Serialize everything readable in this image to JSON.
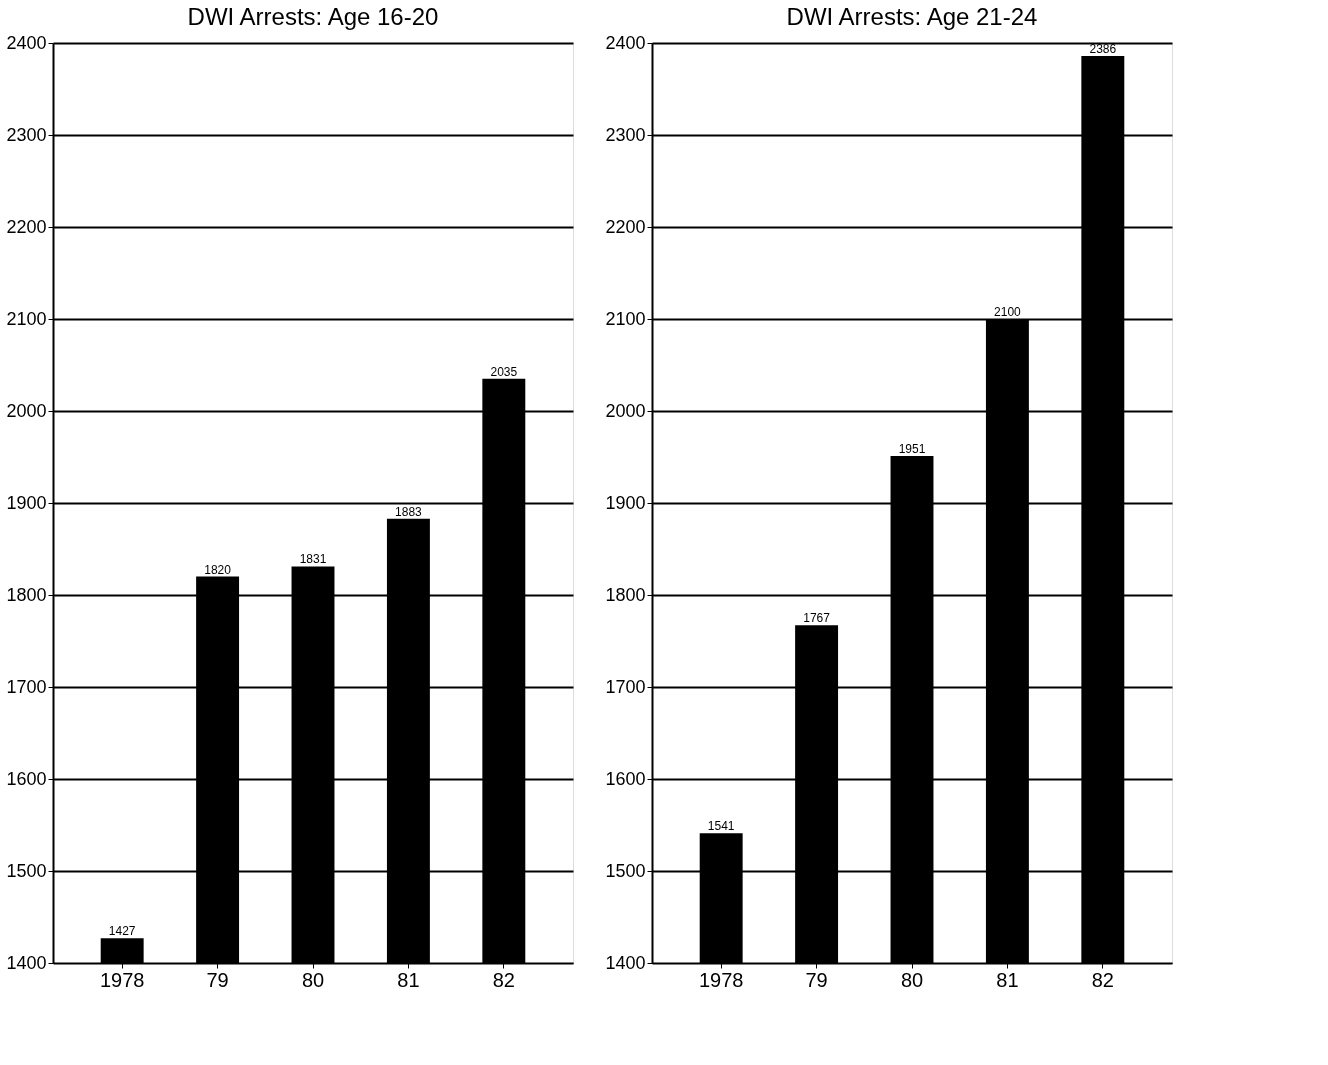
{
  "chart_data": [
    {
      "type": "bar",
      "title": "DWI Arrests: Age 16-20",
      "categories": [
        "1978",
        "79",
        "80",
        "81",
        "82"
      ],
      "values": [
        1427,
        1820,
        1831,
        1883,
        2035
      ],
      "color": "#000000",
      "ylim": [
        1400,
        2400
      ],
      "yticks": [
        1400,
        1500,
        1600,
        1700,
        1800,
        1900,
        2000,
        2100,
        2200,
        2300,
        2400
      ],
      "grid": "y",
      "data_labels": true
    },
    {
      "type": "bar",
      "title": "DWI Arrests: Age 21-24",
      "categories": [
        "1978",
        "79",
        "80",
        "81",
        "82"
      ],
      "values": [
        1541,
        1767,
        1951,
        2100,
        2386
      ],
      "color": "#000000",
      "ylim": [
        1400,
        2400
      ],
      "yticks": [
        1400,
        1500,
        1600,
        1700,
        1800,
        1900,
        2000,
        2100,
        2200,
        2300,
        2400
      ],
      "grid": "y",
      "data_labels": true
    }
  ]
}
